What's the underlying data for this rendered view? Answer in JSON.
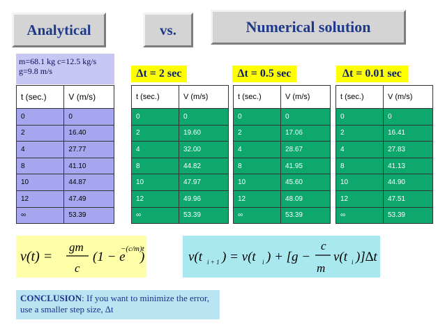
{
  "header": {
    "analytical": "Analytical",
    "vs": "vs.",
    "numerical": "Numerical   solution"
  },
  "params": {
    "line1": "m=68.1 kg   c=12.5 kg/s",
    "line2": "g=9.8  m/s"
  },
  "columns": {
    "t": "t (sec.)",
    "v_upper": "V (m/s)",
    "v_lower": "V (m/s)"
  },
  "analytical_rows": [
    [
      "0",
      "0"
    ],
    [
      "2",
      "16.40"
    ],
    [
      "4",
      "27.77"
    ],
    [
      "8",
      "41.10"
    ],
    [
      "10",
      "44.87"
    ],
    [
      "12",
      "47.49"
    ],
    [
      "∞",
      "53.39"
    ]
  ],
  "numerical": [
    {
      "label": "∆t = 2 sec",
      "rows": [
        [
          "0",
          "0"
        ],
        [
          "2",
          "19.60"
        ],
        [
          "4",
          "32.00"
        ],
        [
          "8",
          "44.82"
        ],
        [
          "10",
          "47.97"
        ],
        [
          "12",
          "49.96"
        ],
        [
          "∞",
          "53.39"
        ]
      ]
    },
    {
      "label": "∆t = 0.5 sec",
      "rows": [
        [
          "0",
          "0"
        ],
        [
          "2",
          "17.06"
        ],
        [
          "4",
          "28.67"
        ],
        [
          "8",
          "41.95"
        ],
        [
          "10",
          "45.60"
        ],
        [
          "12",
          "48.09"
        ],
        [
          "∞",
          "53.39"
        ]
      ]
    },
    {
      "label": "∆t = 0.01 sec",
      "rows": [
        [
          "0",
          "0"
        ],
        [
          "2",
          "16.41"
        ],
        [
          "4",
          "27.83"
        ],
        [
          "8",
          "41.13"
        ],
        [
          "10",
          "44.90"
        ],
        [
          "12",
          "47.51"
        ],
        [
          "∞",
          "53.39"
        ]
      ]
    }
  ],
  "formula_left": {
    "lhs": "v(t) =",
    "num": "gm",
    "den": "c",
    "body": "(1 − e",
    "exp": "−(c/m)t",
    "close": ")"
  },
  "formula_right": {
    "lhs": "v(t",
    "sub_i1": "i + 1",
    "mid": ") = v(t",
    "sub_i": "i",
    "after": ") + [g −",
    "num": "c",
    "den": "m",
    "tail": "v(t",
    "sub_i2": "i",
    "end": ")]∆t"
  },
  "conclusion": {
    "bold": "CONCLUSION",
    "rest": ": If you want to minimize the error, use a smaller step size, ∆t"
  }
}
